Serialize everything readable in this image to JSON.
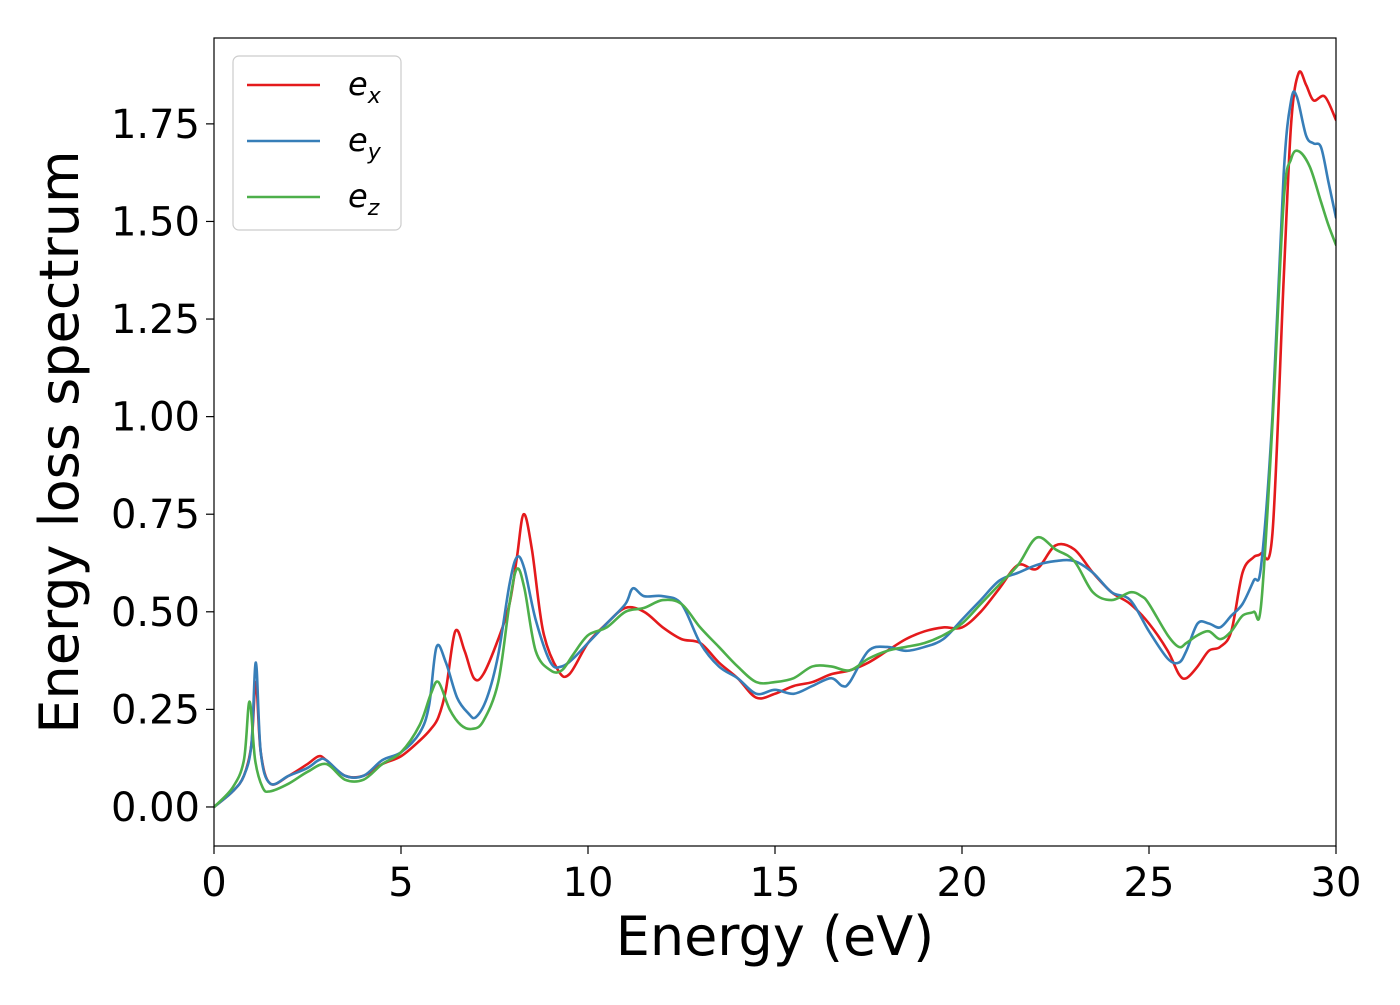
{
  "chart_data": {
    "type": "line",
    "xlabel": "Energy (eV)",
    "ylabel": "Energy loss spectrum",
    "xlim": [
      0,
      30
    ],
    "ylim": [
      -0.1,
      1.97
    ],
    "xticks": [
      0,
      5,
      10,
      15,
      20,
      25,
      30
    ],
    "xtick_labels": [
      "0",
      "5",
      "10",
      "15",
      "20",
      "25",
      "30"
    ],
    "yticks": [
      0.0,
      0.25,
      0.5,
      0.75,
      1.0,
      1.25,
      1.5,
      1.75
    ],
    "ytick_labels": [
      "0.00",
      "0.25",
      "0.50",
      "0.75",
      "1.00",
      "1.25",
      "1.50",
      "1.75"
    ],
    "grid": false,
    "legend_position": "top-left",
    "series": [
      {
        "name": "e_x",
        "legend_base": "e",
        "legend_sub": "x",
        "color": "#e41a1c",
        "x": [
          0,
          0.5,
          0.8,
          1.0,
          1.12,
          1.25,
          1.5,
          2.0,
          2.5,
          2.8,
          3.0,
          3.5,
          4.0,
          4.5,
          5.0,
          5.5,
          5.8,
          6.0,
          6.2,
          6.45,
          6.7,
          6.95,
          7.2,
          7.6,
          7.9,
          8.1,
          8.28,
          8.5,
          8.8,
          9.2,
          9.5,
          10.0,
          10.5,
          11.0,
          11.5,
          12.0,
          12.5,
          13.0,
          13.5,
          14.0,
          14.5,
          15.0,
          15.5,
          16.0,
          16.5,
          17.0,
          17.5,
          18.0,
          18.5,
          19.0,
          19.5,
          20.0,
          20.5,
          21.0,
          21.5,
          22.0,
          22.5,
          23.0,
          23.5,
          24.0,
          24.5,
          25.0,
          25.5,
          25.8,
          26.0,
          26.3,
          26.6,
          26.9,
          27.2,
          27.5,
          27.8,
          28.0,
          28.3,
          28.6,
          28.8,
          29.0,
          29.2,
          29.4,
          29.7,
          30.0
        ],
        "y": [
          0.0,
          0.04,
          0.08,
          0.16,
          0.32,
          0.14,
          0.06,
          0.08,
          0.11,
          0.13,
          0.12,
          0.08,
          0.08,
          0.11,
          0.13,
          0.17,
          0.2,
          0.23,
          0.3,
          0.45,
          0.4,
          0.33,
          0.34,
          0.43,
          0.52,
          0.64,
          0.75,
          0.66,
          0.45,
          0.35,
          0.34,
          0.42,
          0.47,
          0.51,
          0.5,
          0.46,
          0.43,
          0.42,
          0.37,
          0.33,
          0.28,
          0.29,
          0.31,
          0.32,
          0.34,
          0.35,
          0.37,
          0.4,
          0.43,
          0.45,
          0.46,
          0.46,
          0.5,
          0.56,
          0.62,
          0.61,
          0.67,
          0.66,
          0.6,
          0.55,
          0.52,
          0.47,
          0.4,
          0.34,
          0.33,
          0.36,
          0.4,
          0.41,
          0.45,
          0.6,
          0.64,
          0.65,
          0.7,
          1.35,
          1.75,
          1.88,
          1.85,
          1.81,
          1.82,
          1.76
        ]
      },
      {
        "name": "e_y",
        "legend_base": "e",
        "legend_sub": "y",
        "color": "#377eb8",
        "x": [
          0,
          0.5,
          0.8,
          1.0,
          1.12,
          1.25,
          1.5,
          2.0,
          2.5,
          2.8,
          3.0,
          3.5,
          4.0,
          4.5,
          5.0,
          5.5,
          5.75,
          5.95,
          6.2,
          6.5,
          6.8,
          7.0,
          7.3,
          7.6,
          7.9,
          8.1,
          8.3,
          8.6,
          9.0,
          9.3,
          9.6,
          10.0,
          10.5,
          11.0,
          11.2,
          11.5,
          12.0,
          12.5,
          13.0,
          13.5,
          14.0,
          14.5,
          15.0,
          15.5,
          16.0,
          16.5,
          16.8,
          17.0,
          17.5,
          18.0,
          18.5,
          19.0,
          19.5,
          20.0,
          20.5,
          21.0,
          21.5,
          22.0,
          22.5,
          23.0,
          23.5,
          24.0,
          24.5,
          25.0,
          25.5,
          25.8,
          26.0,
          26.3,
          26.6,
          26.9,
          27.2,
          27.5,
          27.8,
          28.0,
          28.3,
          28.6,
          28.8,
          28.95,
          29.2,
          29.4,
          29.6,
          29.8,
          30.0
        ],
        "y": [
          0.0,
          0.04,
          0.08,
          0.16,
          0.37,
          0.14,
          0.06,
          0.08,
          0.1,
          0.12,
          0.12,
          0.08,
          0.08,
          0.12,
          0.14,
          0.19,
          0.26,
          0.41,
          0.37,
          0.28,
          0.24,
          0.23,
          0.28,
          0.39,
          0.57,
          0.64,
          0.61,
          0.48,
          0.37,
          0.36,
          0.38,
          0.42,
          0.47,
          0.52,
          0.56,
          0.54,
          0.54,
          0.52,
          0.42,
          0.36,
          0.33,
          0.29,
          0.3,
          0.29,
          0.31,
          0.33,
          0.31,
          0.32,
          0.4,
          0.41,
          0.4,
          0.41,
          0.43,
          0.48,
          0.53,
          0.58,
          0.6,
          0.62,
          0.63,
          0.63,
          0.6,
          0.55,
          0.53,
          0.45,
          0.38,
          0.37,
          0.4,
          0.47,
          0.47,
          0.46,
          0.49,
          0.52,
          0.58,
          0.62,
          1.0,
          1.62,
          1.81,
          1.82,
          1.72,
          1.7,
          1.69,
          1.6,
          1.51
        ]
      },
      {
        "name": "e_z",
        "legend_base": "e",
        "legend_sub": "z",
        "color": "#4daf4a",
        "x": [
          0,
          0.5,
          0.8,
          0.95,
          1.1,
          1.3,
          1.5,
          2.0,
          2.5,
          3.0,
          3.5,
          4.0,
          4.5,
          5.0,
          5.5,
          5.8,
          6.0,
          6.3,
          6.6,
          6.9,
          7.2,
          7.6,
          7.9,
          8.1,
          8.3,
          8.6,
          9.0,
          9.3,
          9.6,
          10.0,
          10.5,
          11.0,
          11.5,
          12.0,
          12.5,
          13.0,
          13.5,
          14.0,
          14.5,
          15.0,
          15.5,
          16.0,
          16.5,
          17.0,
          17.5,
          18.0,
          18.5,
          19.0,
          19.5,
          20.0,
          20.5,
          21.0,
          21.5,
          22.0,
          22.5,
          23.0,
          23.5,
          24.0,
          24.5,
          24.8,
          25.0,
          25.5,
          25.8,
          26.0,
          26.3,
          26.6,
          26.9,
          27.2,
          27.5,
          27.8,
          28.0,
          28.3,
          28.6,
          28.8,
          29.0,
          29.3,
          29.6,
          29.8,
          30.0
        ],
        "y": [
          0.0,
          0.05,
          0.12,
          0.27,
          0.12,
          0.05,
          0.04,
          0.06,
          0.09,
          0.11,
          0.07,
          0.07,
          0.11,
          0.14,
          0.21,
          0.29,
          0.32,
          0.25,
          0.21,
          0.2,
          0.22,
          0.32,
          0.52,
          0.61,
          0.56,
          0.4,
          0.35,
          0.35,
          0.39,
          0.44,
          0.46,
          0.5,
          0.51,
          0.53,
          0.52,
          0.46,
          0.41,
          0.36,
          0.32,
          0.32,
          0.33,
          0.36,
          0.36,
          0.35,
          0.38,
          0.4,
          0.41,
          0.42,
          0.44,
          0.47,
          0.52,
          0.57,
          0.62,
          0.69,
          0.66,
          0.63,
          0.55,
          0.53,
          0.55,
          0.54,
          0.52,
          0.44,
          0.41,
          0.42,
          0.44,
          0.45,
          0.43,
          0.45,
          0.49,
          0.5,
          0.52,
          0.98,
          1.55,
          1.66,
          1.68,
          1.64,
          1.55,
          1.49,
          1.44
        ]
      }
    ]
  }
}
